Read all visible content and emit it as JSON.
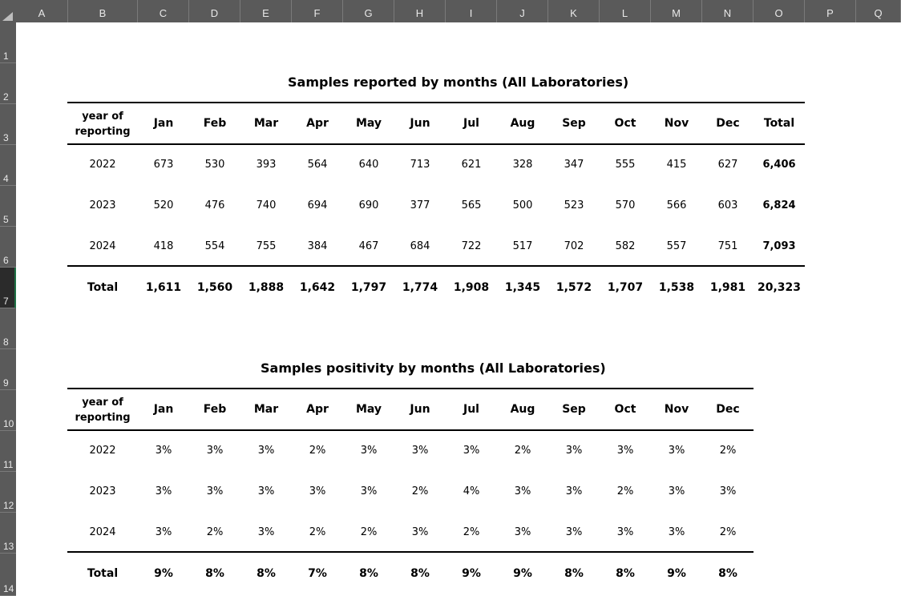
{
  "columns": [
    "A",
    "B",
    "C",
    "D",
    "E",
    "F",
    "G",
    "H",
    "I",
    "J",
    "K",
    "L",
    "M",
    "N",
    "O",
    "P",
    "Q"
  ],
  "rows": [
    "1",
    "2",
    "3",
    "4",
    "5",
    "6",
    "7",
    "8",
    "9",
    "10",
    "11",
    "12",
    "13",
    "14"
  ],
  "table1": {
    "title": "Samples reported by months (All Laboratories)",
    "header_line1": "year of",
    "header_line2": "reporting",
    "months": [
      "Jan",
      "Feb",
      "Mar",
      "Apr",
      "May",
      "Jun",
      "Jul",
      "Aug",
      "Sep",
      "Oct",
      "Nov",
      "Dec",
      "Total"
    ],
    "rows": [
      {
        "year": "2022",
        "values": [
          "673",
          "530",
          "393",
          "564",
          "640",
          "713",
          "621",
          "328",
          "347",
          "555",
          "415",
          "627",
          "6,406"
        ]
      },
      {
        "year": "2023",
        "values": [
          "520",
          "476",
          "740",
          "694",
          "690",
          "377",
          "565",
          "500",
          "523",
          "570",
          "566",
          "603",
          "6,824"
        ]
      },
      {
        "year": "2024",
        "values": [
          "418",
          "554",
          "755",
          "384",
          "467",
          "684",
          "722",
          "517",
          "702",
          "582",
          "557",
          "751",
          "7,093"
        ]
      }
    ],
    "total": {
      "label": "Total",
      "values": [
        "1,611",
        "1,560",
        "1,888",
        "1,642",
        "1,797",
        "1,774",
        "1,908",
        "1,345",
        "1,572",
        "1,707",
        "1,538",
        "1,981",
        "20,323"
      ]
    }
  },
  "table2": {
    "title": "Samples positivity by months (All Laboratories)",
    "header_line1": "year of",
    "header_line2": "reporting",
    "months": [
      "Jan",
      "Feb",
      "Mar",
      "Apr",
      "May",
      "Jun",
      "Jul",
      "Aug",
      "Sep",
      "Oct",
      "Nov",
      "Dec"
    ],
    "rows": [
      {
        "year": "2022",
        "values": [
          "3%",
          "3%",
          "3%",
          "2%",
          "3%",
          "3%",
          "3%",
          "2%",
          "3%",
          "3%",
          "3%",
          "2%"
        ]
      },
      {
        "year": "2023",
        "values": [
          "3%",
          "3%",
          "3%",
          "3%",
          "3%",
          "2%",
          "4%",
          "3%",
          "3%",
          "2%",
          "3%",
          "3%"
        ]
      },
      {
        "year": "2024",
        "values": [
          "3%",
          "2%",
          "3%",
          "2%",
          "2%",
          "3%",
          "2%",
          "3%",
          "3%",
          "3%",
          "3%",
          "2%"
        ]
      }
    ],
    "total": {
      "label": "Total",
      "values": [
        "9%",
        "8%",
        "8%",
        "7%",
        "8%",
        "8%",
        "9%",
        "9%",
        "8%",
        "8%",
        "9%",
        "8%"
      ]
    }
  }
}
